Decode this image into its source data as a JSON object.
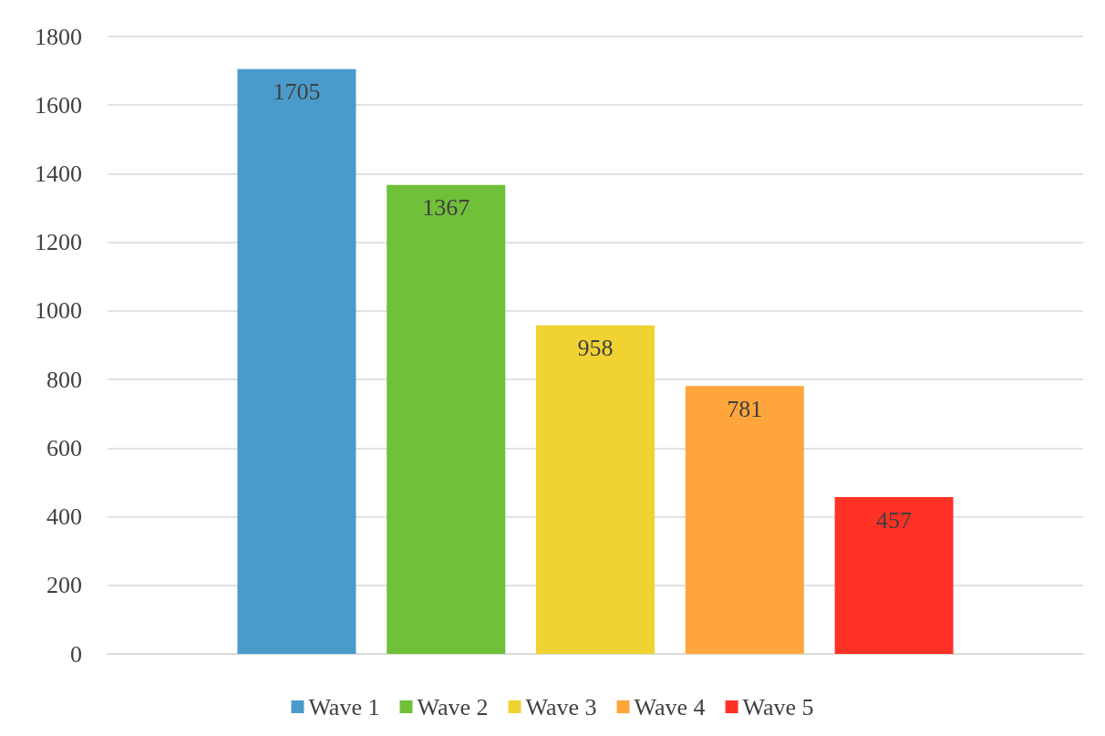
{
  "chart_data": {
    "type": "bar",
    "categories": [
      null
    ],
    "series": [
      {
        "name": "Wave 1",
        "color": "#4a9bcb",
        "values": [
          1705
        ]
      },
      {
        "name": "Wave 2",
        "color": "#70c03a",
        "values": [
          1367
        ]
      },
      {
        "name": "Wave 3",
        "color": "#f0d232",
        "values": [
          958
        ]
      },
      {
        "name": "Wave 4",
        "color": "#fea53c",
        "values": [
          781
        ]
      },
      {
        "name": "Wave 5",
        "color": "#ff3126",
        "values": [
          457
        ]
      }
    ],
    "ylim": [
      0,
      1800
    ],
    "yticks": [
      0,
      200,
      400,
      600,
      800,
      1000,
      1200,
      1400,
      1600,
      1800
    ],
    "grid": "y",
    "legend": "bottom",
    "data_labels": true
  }
}
